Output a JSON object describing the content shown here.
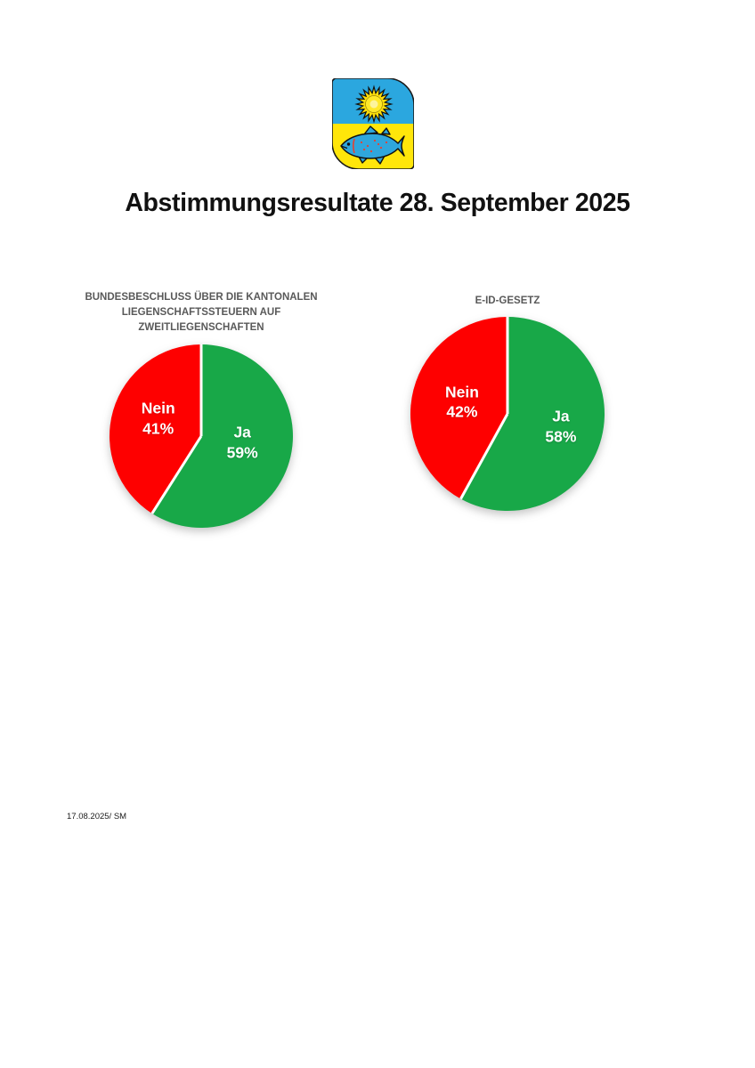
{
  "page": {
    "title": "Abstimmungsresultate 28. September 2025",
    "footer_note": "17.08.2025/ SM"
  },
  "logo": {
    "description": "coat-of-arms with yellow sun on blue over blue fish on yellow",
    "field_blue": "#2BA7DF",
    "field_yellow": "#FFE60A"
  },
  "charts": [
    {
      "title": "BUNDESBESCHLUSS ÜBER DIE KANTONALEN\nLIEGENSCHAFTSSTEUERN AUF\nZWEITLIEGENSCHAFTEN",
      "slices": [
        {
          "label": "Ja",
          "pct": "59%"
        },
        {
          "label": "Nein",
          "pct": "41%"
        }
      ]
    },
    {
      "title": "E-ID-GESETZ",
      "slices": [
        {
          "label": "Ja",
          "pct": "58%"
        },
        {
          "label": "Nein",
          "pct": "42%"
        }
      ]
    }
  ],
  "chart_data": [
    {
      "type": "pie",
      "title": "BUNDESBESCHLUSS ÜBER DIE KANTONALEN LIEGENSCHAFTSSTEUERN AUF ZWEITLIEGENSCHAFTEN",
      "labels": [
        "Ja",
        "Nein"
      ],
      "values": [
        59,
        41
      ],
      "unit": "%",
      "colors": [
        "#18A848",
        "#FE0000"
      ],
      "start_angle_deg": 0,
      "direction": "clockwise",
      "legend": "none",
      "data_labels": "inside"
    },
    {
      "type": "pie",
      "title": "E-ID-GESETZ",
      "labels": [
        "Ja",
        "Nein"
      ],
      "values": [
        58,
        42
      ],
      "unit": "%",
      "colors": [
        "#18A848",
        "#FE0000"
      ],
      "start_angle_deg": 0,
      "direction": "clockwise",
      "legend": "none",
      "data_labels": "inside"
    }
  ]
}
